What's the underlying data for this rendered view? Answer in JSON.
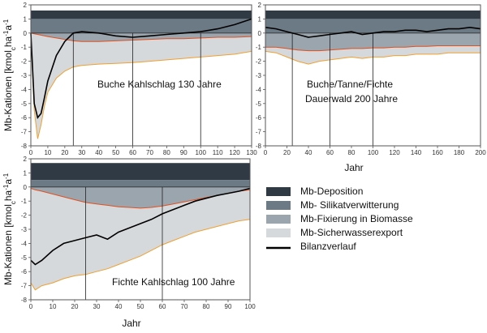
{
  "colors": {
    "deposition": "#2f3a45",
    "silicate": "#6c7a85",
    "biomass": "#9aa5ae",
    "export": "#d6d9dc",
    "bilanz": "#000000",
    "export_line": "#f0a030",
    "biomass_line": "#e05020",
    "border": "#555555"
  },
  "ylabel": "Mb-Kationen [kmol",
  "ylabel_sub": "c",
  "ylabel_rest": "ha",
  "ylabel_sup1": "-1",
  "ylabel_rest2": "a",
  "ylabel_sup2": "-1",
  "xlabel": "Jahr",
  "legend": [
    {
      "key": "deposition",
      "label": "Mb-Deposition"
    },
    {
      "key": "silicate",
      "label": "Mb- Silikatverwitterung"
    },
    {
      "key": "biomass",
      "label": "Mb-Fixierung in Biomasse"
    },
    {
      "key": "export",
      "label": "Mb-Sicherwasserexport"
    },
    {
      "key": "bilanz",
      "label": "Bilanzverlauf"
    }
  ],
  "chart_data": [
    {
      "type": "area",
      "title": "Buche Kahlschlag 130 Jahre",
      "xlim": [
        0,
        130
      ],
      "ylim": [
        -8,
        2
      ],
      "xticks": [
        0,
        10,
        20,
        30,
        40,
        50,
        60,
        70,
        80,
        90,
        100,
        110,
        120,
        130
      ],
      "yticks": [
        2,
        1,
        0,
        -1,
        -2,
        -3,
        -4,
        -5,
        -6,
        -7,
        -8
      ],
      "vlines": [
        25,
        60,
        100
      ],
      "deposition_top": 1.6,
      "silicate_top": 1.0,
      "x": [
        0,
        2,
        4,
        6,
        8,
        10,
        15,
        20,
        25,
        30,
        40,
        50,
        60,
        70,
        80,
        90,
        100,
        110,
        120,
        130
      ],
      "biomass": [
        0,
        -0.05,
        -0.1,
        -0.15,
        -0.2,
        -0.25,
        -0.35,
        -0.45,
        -0.55,
        -0.6,
        -0.6,
        -0.55,
        -0.5,
        -0.45,
        -0.4,
        -0.4,
        -0.35,
        -0.3,
        -0.3,
        -0.25
      ],
      "export": [
        0,
        -5.5,
        -7.5,
        -6.5,
        -5.2,
        -4.2,
        -3.2,
        -2.7,
        -2.4,
        -2.3,
        -2.2,
        -2.15,
        -2.1,
        -2.0,
        -1.9,
        -1.8,
        -1.7,
        -1.6,
        -1.5,
        -1.3
      ],
      "bilanz": [
        0,
        -5.0,
        -6.0,
        -5.7,
        -4.6,
        -3.4,
        -1.6,
        -0.6,
        0.0,
        0.1,
        0.0,
        -0.2,
        -0.3,
        -0.2,
        -0.1,
        0.0,
        0.1,
        0.3,
        0.6,
        1.0
      ]
    },
    {
      "type": "area",
      "title": "Buche/Tanne/Fichte",
      "title2": "Dauerwald 200 Jahre",
      "xlim": [
        0,
        200
      ],
      "ylim": [
        -8,
        2
      ],
      "xticks": [
        0,
        20,
        40,
        60,
        80,
        100,
        120,
        140,
        160,
        180,
        200
      ],
      "yticks": [
        2,
        1,
        0,
        -1,
        -2,
        -3,
        -4,
        -5,
        -6,
        -7,
        -8
      ],
      "vlines": [
        25,
        60,
        100
      ],
      "deposition_top": 1.6,
      "silicate_top": 1.0,
      "x": [
        0,
        10,
        20,
        30,
        40,
        50,
        60,
        70,
        80,
        90,
        100,
        110,
        120,
        130,
        140,
        150,
        160,
        170,
        180,
        190,
        200
      ],
      "biomass": [
        -1.0,
        -1.0,
        -1.1,
        -1.2,
        -1.25,
        -1.25,
        -1.2,
        -1.15,
        -1.1,
        -1.1,
        -1.05,
        -1.05,
        -1.0,
        -1.0,
        -0.95,
        -0.95,
        -0.9,
        -0.9,
        -0.9,
        -0.9,
        -0.9
      ],
      "export": [
        -1.3,
        -1.4,
        -1.7,
        -2.0,
        -2.2,
        -2.0,
        -1.9,
        -1.8,
        -1.7,
        -1.8,
        -1.7,
        -1.7,
        -1.6,
        -1.6,
        -1.5,
        -1.5,
        -1.5,
        -1.4,
        -1.4,
        -1.4,
        -1.4
      ],
      "bilanz": [
        0.4,
        0.3,
        0.1,
        -0.1,
        -0.3,
        -0.2,
        -0.1,
        0.0,
        0.1,
        -0.1,
        0.0,
        0.1,
        0.1,
        0.2,
        0.2,
        0.1,
        0.2,
        0.3,
        0.3,
        0.4,
        0.3
      ]
    },
    {
      "type": "area",
      "title": "Fichte Kahlschlag 100 Jahre",
      "xlim": [
        0,
        100
      ],
      "ylim": [
        -8,
        2
      ],
      "xticks": [
        0,
        10,
        20,
        30,
        40,
        50,
        60,
        70,
        80,
        90,
        100
      ],
      "yticks": [
        2,
        1,
        0,
        -1,
        -2,
        -3,
        -4,
        -5,
        -6,
        -7,
        -8
      ],
      "vlines": [
        25,
        60
      ],
      "deposition_top": 1.7,
      "silicate_top": 0.5,
      "x": [
        0,
        2,
        5,
        10,
        15,
        20,
        25,
        30,
        35,
        40,
        45,
        50,
        55,
        60,
        65,
        70,
        75,
        80,
        85,
        90,
        95,
        100
      ],
      "biomass": [
        -0.1,
        -0.2,
        -0.3,
        -0.5,
        -0.7,
        -0.9,
        -1.1,
        -1.2,
        -1.3,
        -1.4,
        -1.45,
        -1.5,
        -1.45,
        -1.35,
        -1.2,
        -1.05,
        -0.9,
        -0.75,
        -0.6,
        -0.45,
        -0.3,
        -0.2
      ],
      "export": [
        -6.8,
        -7.3,
        -7.0,
        -6.8,
        -6.5,
        -6.3,
        -6.2,
        -6.0,
        -5.8,
        -5.5,
        -5.2,
        -4.9,
        -4.5,
        -4.1,
        -3.8,
        -3.5,
        -3.2,
        -3.0,
        -2.8,
        -2.6,
        -2.4,
        -2.3
      ],
      "bilanz": [
        -5.2,
        -5.5,
        -5.2,
        -4.5,
        -4.0,
        -3.8,
        -3.6,
        -3.4,
        -3.7,
        -3.2,
        -2.9,
        -2.6,
        -2.3,
        -1.9,
        -1.6,
        -1.3,
        -1.0,
        -0.8,
        -0.6,
        -0.45,
        -0.3,
        -0.1
      ]
    }
  ]
}
